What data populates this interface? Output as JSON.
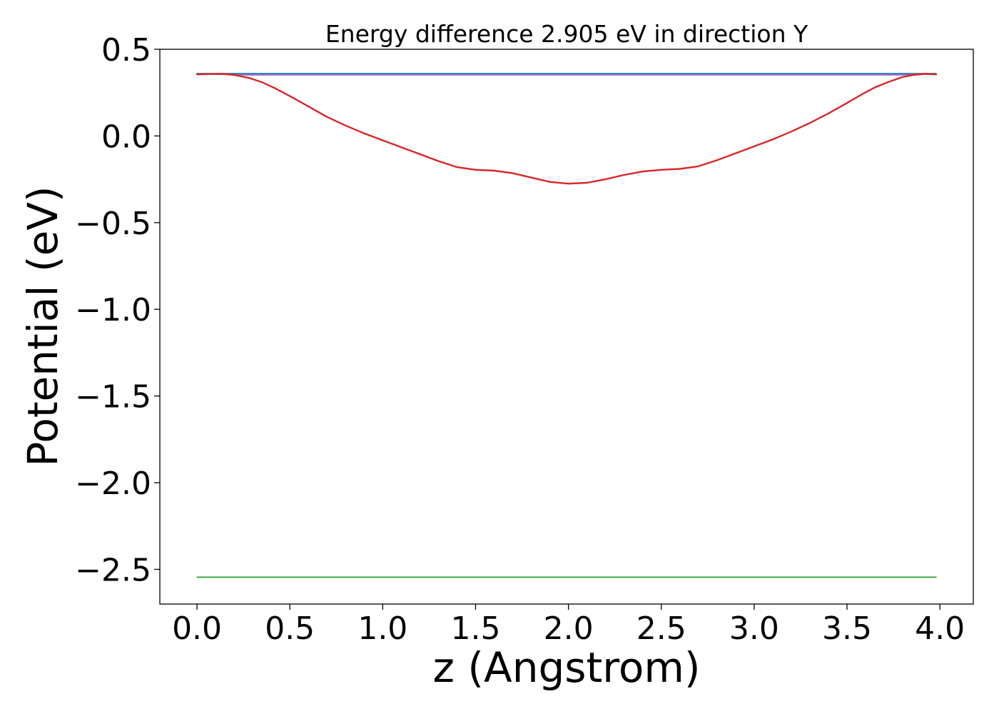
{
  "chart_data": {
    "type": "line",
    "title": "Energy difference 2.905 eV in direction Y",
    "xlabel": "z (Angstrom)",
    "ylabel": "Potential (eV)",
    "xlim": [
      -0.2,
      4.18
    ],
    "ylim": [
      -2.7,
      0.5
    ],
    "grid": false,
    "x_ticks": [
      0.0,
      0.5,
      1.0,
      1.5,
      2.0,
      2.5,
      3.0,
      3.5,
      4.0
    ],
    "x_tick_labels": [
      "0.0",
      "0.5",
      "1.0",
      "1.5",
      "2.0",
      "2.5",
      "3.0",
      "3.5",
      "4.0"
    ],
    "y_ticks": [
      0.5,
      0.0,
      -0.5,
      -1.0,
      -1.5,
      -2.0,
      -2.5
    ],
    "y_tick_labels": [
      "0.5",
      "0.0",
      "−0.5",
      "−1.0",
      "−1.5",
      "−2.0",
      "−2.5"
    ],
    "series": [
      {
        "color": "#1f77b4",
        "x": [
          0.0,
          3.98
        ],
        "y": [
          0.36,
          0.36
        ]
      },
      {
        "color": "#2ca02c",
        "x": [
          0.0,
          3.98
        ],
        "y": [
          -2.545,
          -2.545
        ]
      },
      {
        "color": "#9467bd",
        "x": [
          0.0,
          0.1,
          0.2,
          3.8,
          3.9,
          3.98
        ],
        "y": [
          0.355,
          0.358,
          0.352,
          0.352,
          0.358,
          0.355
        ]
      },
      {
        "color": "#d62728",
        "x": [
          0.0,
          0.07,
          0.14,
          0.2,
          0.28,
          0.35,
          0.42,
          0.5,
          0.6,
          0.7,
          0.8,
          0.9,
          1.0,
          1.1,
          1.2,
          1.3,
          1.4,
          1.5,
          1.6,
          1.7,
          1.8,
          1.9,
          2.0,
          2.1,
          2.2,
          2.3,
          2.4,
          2.5,
          2.6,
          2.7,
          2.8,
          2.9,
          3.0,
          3.1,
          3.2,
          3.3,
          3.4,
          3.5,
          3.58,
          3.65,
          3.72,
          3.8,
          3.86,
          3.92,
          3.98
        ],
        "y": [
          0.355,
          0.357,
          0.358,
          0.352,
          0.335,
          0.31,
          0.275,
          0.23,
          0.17,
          0.11,
          0.06,
          0.015,
          -0.025,
          -0.065,
          -0.105,
          -0.145,
          -0.18,
          -0.195,
          -0.2,
          -0.215,
          -0.24,
          -0.265,
          -0.275,
          -0.27,
          -0.25,
          -0.225,
          -0.205,
          -0.195,
          -0.19,
          -0.175,
          -0.14,
          -0.1,
          -0.06,
          -0.02,
          0.025,
          0.075,
          0.13,
          0.19,
          0.24,
          0.28,
          0.31,
          0.34,
          0.352,
          0.358,
          0.355
        ]
      }
    ]
  }
}
